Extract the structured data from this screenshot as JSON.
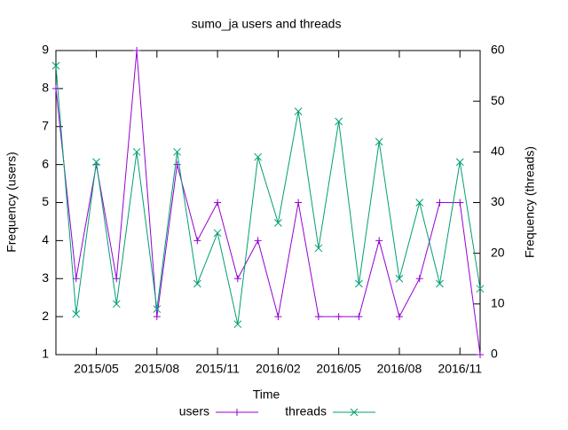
{
  "chart_data": {
    "type": "line",
    "title": "sumo_ja users and threads",
    "xlabel": "Time",
    "ylabel": "Frequency (users)",
    "y2label": "Frequency (threads)",
    "x": [
      "2015/03",
      "2015/04",
      "2015/05",
      "2015/06",
      "2015/07",
      "2015/08",
      "2015/09",
      "2015/10",
      "2015/11",
      "2015/12",
      "2016/01",
      "2016/02",
      "2016/03",
      "2016/04",
      "2016/05",
      "2016/06",
      "2016/07",
      "2016/08",
      "2016/09",
      "2016/10",
      "2016/11",
      "2016/12"
    ],
    "xlim": [
      "2015/03",
      "2016/12"
    ],
    "xticks": [
      "2015/05",
      "2015/08",
      "2015/11",
      "2016/02",
      "2016/05",
      "2016/08",
      "2016/11"
    ],
    "ylim": [
      1,
      9
    ],
    "yticks": [
      1,
      2,
      3,
      4,
      5,
      6,
      7,
      8,
      9
    ],
    "y2lim": [
      0,
      60
    ],
    "y2ticks": [
      0,
      10,
      20,
      30,
      40,
      50,
      60
    ],
    "legend": "bottom",
    "series": [
      {
        "name": "users",
        "color": "#9400d3",
        "marker": "plus",
        "values": [
          8,
          3,
          6,
          3,
          9,
          2,
          6,
          4,
          5,
          3,
          4,
          2,
          5,
          2,
          2,
          2,
          4,
          2,
          3,
          5,
          5,
          1
        ]
      },
      {
        "name": "threads",
        "color": "#009e73",
        "marker": "cross",
        "axis": "y2",
        "values": [
          57,
          8,
          38,
          10,
          40,
          9,
          40,
          14,
          24,
          6,
          39,
          26,
          48,
          21,
          46,
          14,
          42,
          15,
          30,
          14,
          38,
          13
        ]
      }
    ]
  }
}
